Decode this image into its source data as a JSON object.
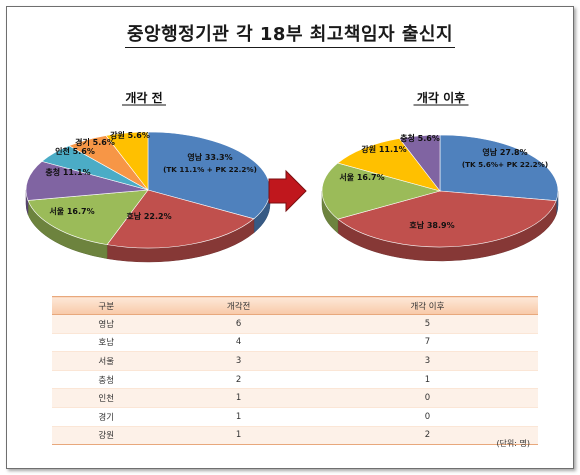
{
  "title": "중앙행정기관 각 18부 최고책임자 출신지",
  "chart_data": [
    {
      "type": "pie",
      "title": "개각 전",
      "slices": [
        {
          "label": "영남",
          "value": 33.3,
          "text": "영남 33.3%",
          "sub": "(TK 11.1% + PK 22.2%)",
          "color": "#4f81bd"
        },
        {
          "label": "호남",
          "value": 22.2,
          "text": "호남 22.2%",
          "color": "#c0504d"
        },
        {
          "label": "서울",
          "value": 16.7,
          "text": "서울 16.7%",
          "color": "#9bbb59"
        },
        {
          "label": "충청",
          "value": 11.1,
          "text": "충청 11.1%",
          "color": "#8064a2"
        },
        {
          "label": "인천",
          "value": 5.6,
          "text": "인천 5.6%",
          "color": "#4bacc6"
        },
        {
          "label": "경기",
          "value": 5.6,
          "text": "경기 5.6%",
          "color": "#f79646"
        },
        {
          "label": "강원",
          "value": 5.6,
          "text": "강원 5.6%",
          "color": "#ffc000"
        }
      ]
    },
    {
      "type": "pie",
      "title": "개각 이후",
      "slices": [
        {
          "label": "영남",
          "value": 27.8,
          "text": "영남 27.8%",
          "sub": "(TK 5.6%+ PK 22.2%)",
          "color": "#4f81bd"
        },
        {
          "label": "호남",
          "value": 38.9,
          "text": "호남 38.9%",
          "color": "#c0504d"
        },
        {
          "label": "서울",
          "value": 16.7,
          "text": "서울 16.7%",
          "color": "#9bbb59"
        },
        {
          "label": "강원",
          "value": 11.1,
          "text": "강원 11.1%",
          "color": "#ffc000"
        },
        {
          "label": "충청",
          "value": 5.6,
          "text": "충청 5.6%",
          "color": "#8064a2"
        }
      ]
    },
    {
      "type": "table",
      "columns": [
        "구분",
        "개각전",
        "개각 이후"
      ],
      "rows": [
        [
          "영남",
          "6",
          "5"
        ],
        [
          "호남",
          "4",
          "7"
        ],
        [
          "서울",
          "3",
          "3"
        ],
        [
          "충청",
          "2",
          "1"
        ],
        [
          "인천",
          "1",
          "0"
        ],
        [
          "경기",
          "1",
          "0"
        ],
        [
          "강원",
          "1",
          "2"
        ]
      ],
      "unit": "(단위: 명)"
    }
  ],
  "arrow_color": "#c0171d"
}
